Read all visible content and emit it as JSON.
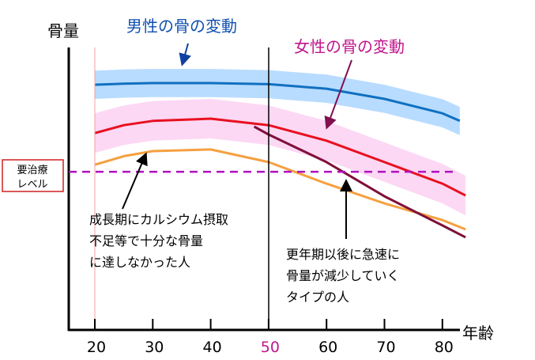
{
  "chart_data": {
    "type": "line",
    "ylabel": "骨量",
    "xlabel": "年齢",
    "xlim": [
      15,
      87
    ],
    "ylim": [
      0,
      100
    ],
    "x_ticks": [
      20,
      30,
      40,
      50,
      60,
      70,
      80
    ],
    "x_tick_labels": [
      "20",
      "30",
      "40",
      "50",
      "60",
      "70",
      "80"
    ],
    "highlight_tick": "50",
    "highlight_color": "#c0168c",
    "treatment_level": {
      "label_line1": "要治療",
      "label_line2": "レベル",
      "value": 56,
      "color": "#b010c0"
    },
    "series": [
      {
        "key": "male",
        "color": "#1070c0",
        "band_color": "#b8dcff",
        "band": 5,
        "x": [
          20,
          25,
          30,
          40,
          50,
          60,
          70,
          80,
          83
        ],
        "y": [
          86.8,
          87.2,
          87.4,
          87.4,
          87,
          85.4,
          81.8,
          76.7,
          74
        ]
      },
      {
        "key": "female",
        "color": "#e81020",
        "band_color": "#fcd8f4",
        "band": 7,
        "x": [
          20,
          25,
          30,
          40,
          50,
          60,
          70,
          80,
          84
        ],
        "y": [
          69.7,
          72.5,
          74,
          74.8,
          72.5,
          67,
          59.4,
          51.8,
          47.6
        ]
      },
      {
        "key": "low-peak",
        "color": "#f5a040",
        "x": [
          20,
          25,
          30,
          40,
          50,
          60,
          70,
          80,
          84
        ],
        "y": [
          58.5,
          61.5,
          63.3,
          63.9,
          59.4,
          51.8,
          44.8,
          38.9,
          35.6
        ]
      },
      {
        "key": "rapid-loss",
        "color": "#80103a",
        "x": [
          47.5,
          50,
          60,
          70,
          80,
          84
        ],
        "y": [
          72,
          69.2,
          59.4,
          47.3,
          37,
          32.8
        ]
      }
    ],
    "annotations": {
      "male": "男性の骨の変動",
      "female": "女性の骨の変動",
      "low_peak": [
        "成長期にカルシウム摂取",
        "不足等で十分な骨量",
        "に達しなかった人"
      ],
      "rapid_loss": [
        "更年期以後に急速に",
        "骨量が減少していく",
        "タイプの人"
      ]
    }
  }
}
